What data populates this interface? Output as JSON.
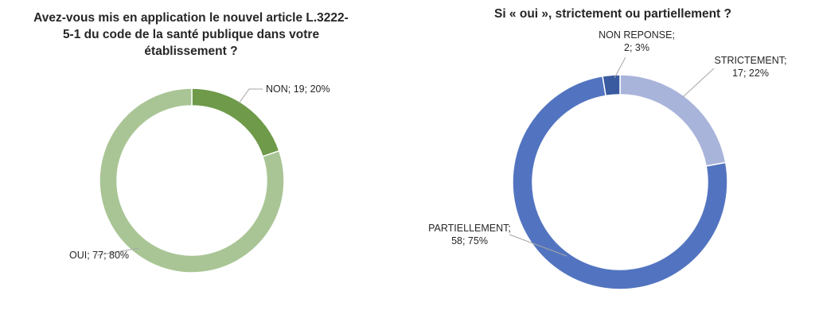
{
  "chart_data": [
    {
      "type": "pie",
      "variant": "donut",
      "title": "Avez-vous mis en application le nouvel article L.3222-5-1 du code de la santé publique dans votre établissement ?",
      "slices": [
        {
          "name": "NON",
          "count": 19,
          "percent": 20,
          "label": "NON; 19; 20%",
          "color": "#6e9a49"
        },
        {
          "name": "OUI",
          "count": 77,
          "percent": 80,
          "label": "OUI; 77; 80%",
          "color": "#a9c595"
        }
      ]
    },
    {
      "type": "pie",
      "variant": "donut",
      "title": "Si « oui », strictement ou partiellement ?",
      "slices": [
        {
          "name": "STRICTEMENT",
          "count": 17,
          "percent": 22,
          "label_lines": [
            "STRICTEMENT;",
            "17; 22%"
          ],
          "color": "#a9b4db"
        },
        {
          "name": "PARTIELLEMENT",
          "count": 58,
          "percent": 75,
          "label_lines": [
            "PARTIELLEMENT;",
            "58; 75%"
          ],
          "color": "#5274c0"
        },
        {
          "name": "NON REPONSE",
          "count": 2,
          "percent": 3,
          "label_lines": [
            "NON REPONSE;",
            "2; 3%"
          ],
          "color": "#3a5ba0"
        }
      ]
    }
  ]
}
